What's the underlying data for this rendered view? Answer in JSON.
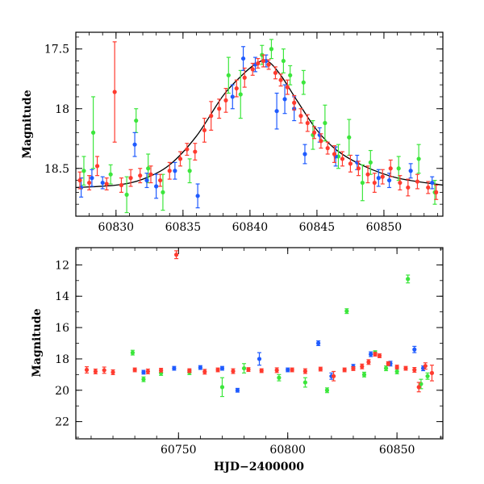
{
  "chart_data": [
    {
      "panel": "top",
      "type": "scatter",
      "ylabel": "Magnitude",
      "xlim": [
        60827,
        60854.4
      ],
      "ylim": [
        18.9,
        17.36
      ],
      "y_inverted": true,
      "xticks": [
        60830,
        60835,
        60840,
        60845,
        60850
      ],
      "yticks": [
        17.5,
        18,
        18.5
      ],
      "ytick_labels": [
        "17.5",
        "18",
        "18.5"
      ],
      "grid": false,
      "model_curve": {
        "name": "",
        "color": "#000000",
        "points": [
          [
            60827,
            18.66
          ],
          [
            60830,
            18.64
          ],
          [
            60832,
            18.59
          ],
          [
            60834,
            18.47
          ],
          [
            60836,
            18.23
          ],
          [
            60838,
            17.89
          ],
          [
            60839.5,
            17.71
          ],
          [
            60840.5,
            17.62
          ],
          [
            60841.3,
            17.6
          ],
          [
            60842.3,
            17.72
          ],
          [
            60843.5,
            17.93
          ],
          [
            60845,
            18.18
          ],
          [
            60846.5,
            18.35
          ],
          [
            60848.5,
            18.48
          ],
          [
            60851,
            18.58
          ],
          [
            60854.4,
            18.64
          ]
        ]
      },
      "series": [
        {
          "color": "#ff3b2f",
          "points": [
            [
              60827.3,
              18.6,
              0.07
            ],
            [
              60828.0,
              18.62,
              0.06
            ],
            [
              60828.6,
              18.48,
              0.08
            ],
            [
              60829.3,
              18.63,
              0.05
            ],
            [
              60829.9,
              17.86,
              0.42
            ],
            [
              60830.4,
              18.64,
              0.06
            ],
            [
              60831.1,
              18.58,
              0.07
            ],
            [
              60831.8,
              18.56,
              0.06
            ],
            [
              60832.6,
              18.55,
              0.07
            ],
            [
              60833.3,
              18.6,
              0.05
            ],
            [
              60834.0,
              18.52,
              0.07
            ],
            [
              60834.8,
              18.42,
              0.06
            ],
            [
              60835.3,
              18.34,
              0.05
            ],
            [
              60835.9,
              18.36,
              0.07
            ],
            [
              60836.6,
              18.18,
              0.1
            ],
            [
              60837.1,
              18.06,
              0.12
            ],
            [
              60837.7,
              18.0,
              0.08
            ],
            [
              60838.2,
              17.93,
              0.1
            ],
            [
              60839.0,
              17.83,
              0.07
            ],
            [
              60839.6,
              17.74,
              0.08
            ],
            [
              60840.2,
              17.67,
              0.05
            ],
            [
              60840.6,
              17.62,
              0.04
            ],
            [
              60841.0,
              17.6,
              0.05
            ],
            [
              60841.4,
              17.63,
              0.04
            ],
            [
              60841.9,
              17.7,
              0.05
            ],
            [
              60842.3,
              17.76,
              0.05
            ],
            [
              60842.8,
              17.82,
              0.06
            ],
            [
              60843.3,
              17.95,
              0.06
            ],
            [
              60843.8,
              18.06,
              0.06
            ],
            [
              60844.3,
              18.12,
              0.07
            ],
            [
              60844.8,
              18.2,
              0.05
            ],
            [
              60845.3,
              18.27,
              0.06
            ],
            [
              60845.8,
              18.33,
              0.05
            ],
            [
              60846.3,
              18.38,
              0.07
            ],
            [
              60846.9,
              18.42,
              0.06
            ],
            [
              60847.5,
              18.46,
              0.07
            ],
            [
              60848.1,
              18.5,
              0.06
            ],
            [
              60848.8,
              18.55,
              0.07
            ],
            [
              60849.3,
              18.62,
              0.08
            ],
            [
              60849.9,
              18.57,
              0.06
            ],
            [
              60850.5,
              18.5,
              0.07
            ],
            [
              60851.2,
              18.62,
              0.06
            ],
            [
              60851.8,
              18.66,
              0.07
            ],
            [
              60852.5,
              18.61,
              0.06
            ],
            [
              60853.3,
              18.66,
              0.05
            ],
            [
              60853.9,
              18.7,
              0.06
            ]
          ]
        },
        {
          "color": "#1f5bff",
          "points": [
            [
              60827.4,
              18.66,
              0.08
            ],
            [
              60828.2,
              18.58,
              0.07
            ],
            [
              60829.0,
              18.62,
              0.05
            ],
            [
              60831.4,
              18.3,
              0.1
            ],
            [
              60832.3,
              18.6,
              0.06
            ],
            [
              60833.0,
              18.65,
              0.1
            ],
            [
              60834.4,
              18.52,
              0.07
            ],
            [
              60836.1,
              18.73,
              0.1
            ],
            [
              60838.7,
              17.9,
              0.1
            ],
            [
              60839.5,
              17.58,
              0.1
            ],
            [
              60840.4,
              17.63,
              0.06
            ],
            [
              60841.2,
              17.6,
              0.05
            ],
            [
              60842.0,
              18.02,
              0.15
            ],
            [
              60842.6,
              17.92,
              0.12
            ],
            [
              60843.3,
              18.0,
              0.1
            ],
            [
              60844.1,
              18.38,
              0.08
            ],
            [
              60845.2,
              18.22,
              0.06
            ],
            [
              60846.4,
              18.4,
              0.08
            ],
            [
              60848.0,
              18.45,
              0.06
            ],
            [
              60849.6,
              18.58,
              0.07
            ],
            [
              60850.4,
              18.6,
              0.06
            ],
            [
              60852.0,
              18.52,
              0.06
            ],
            [
              60853.6,
              18.62,
              0.05
            ]
          ]
        },
        {
          "color": "#3ce63c",
          "points": [
            [
              60827.6,
              18.52,
              0.12
            ],
            [
              60828.3,
              18.2,
              0.3
            ],
            [
              60829.6,
              18.55,
              0.08
            ],
            [
              60830.8,
              18.72,
              0.15
            ],
            [
              60831.5,
              18.1,
              0.1
            ],
            [
              60832.4,
              18.5,
              0.12
            ],
            [
              60833.5,
              18.7,
              0.15
            ],
            [
              60835.5,
              18.52,
              0.1
            ],
            [
              60838.4,
              17.72,
              0.15
            ],
            [
              60839.3,
              17.88,
              0.2
            ],
            [
              60840.9,
              17.55,
              0.08
            ],
            [
              60841.6,
              17.5,
              0.08
            ],
            [
              60842.5,
              17.6,
              0.1
            ],
            [
              60843.0,
              17.72,
              0.08
            ],
            [
              60844.0,
              17.78,
              0.1
            ],
            [
              60844.7,
              18.22,
              0.12
            ],
            [
              60845.6,
              18.12,
              0.15
            ],
            [
              60846.6,
              18.4,
              0.1
            ],
            [
              60847.4,
              18.24,
              0.15
            ],
            [
              60848.4,
              18.62,
              0.15
            ],
            [
              60849.0,
              18.45,
              0.1
            ],
            [
              60851.1,
              18.5,
              0.1
            ],
            [
              60852.6,
              18.42,
              0.12
            ],
            [
              60853.8,
              18.7,
              0.1
            ]
          ]
        }
      ]
    },
    {
      "panel": "bottom",
      "type": "scatter",
      "xlabel": "HJD−2400000",
      "ylabel": "Magnitude",
      "xlim": [
        60703,
        60871
      ],
      "ylim": [
        23.1,
        10.9
      ],
      "y_inverted": true,
      "xticks": [
        60750,
        60800,
        60850
      ],
      "yticks": [
        12,
        14,
        16,
        18,
        20,
        22
      ],
      "grid": false,
      "series": [
        {
          "color": "#ff3b2f",
          "points": [
            [
              60708,
              18.7,
              0.2
            ],
            [
              60712,
              18.8,
              0.15
            ],
            [
              60716,
              18.72,
              0.2
            ],
            [
              60720,
              18.85,
              0.15
            ],
            [
              60730,
              18.7,
              0.12
            ],
            [
              60736,
              18.8,
              0.15
            ],
            [
              60742,
              18.72,
              0.12
            ],
            [
              60749,
              11.35,
              0.25
            ],
            [
              60755,
              18.75,
              0.12
            ],
            [
              60762,
              18.82,
              0.15
            ],
            [
              60768,
              18.7,
              0.12
            ],
            [
              60775,
              18.78,
              0.15
            ],
            [
              60782,
              18.68,
              0.12
            ],
            [
              60788,
              18.75,
              0.12
            ],
            [
              60795,
              18.72,
              0.15
            ],
            [
              60802,
              18.7,
              0.12
            ],
            [
              60808,
              18.78,
              0.15
            ],
            [
              60815,
              18.65,
              0.12
            ],
            [
              60821,
              19.1,
              0.3
            ],
            [
              60826,
              18.7,
              0.12
            ],
            [
              60830,
              18.62,
              0.12
            ],
            [
              60834,
              18.48,
              0.15
            ],
            [
              60837,
              18.2,
              0.15
            ],
            [
              60840,
              17.7,
              0.12
            ],
            [
              60842,
              17.8,
              0.12
            ],
            [
              60846,
              18.3,
              0.12
            ],
            [
              60850,
              18.52,
              0.12
            ],
            [
              60854,
              18.6,
              0.12
            ],
            [
              60858,
              18.7,
              0.15
            ],
            [
              60860,
              19.8,
              0.3
            ],
            [
              60863,
              18.45,
              0.2
            ],
            [
              60866,
              18.9,
              0.5
            ]
          ]
        },
        {
          "color": "#1f5bff",
          "points": [
            [
              60734,
              18.85,
              0.12
            ],
            [
              60748,
              18.6,
              0.12
            ],
            [
              60760,
              18.55,
              0.12
            ],
            [
              60770,
              18.6,
              0.12
            ],
            [
              60777,
              20.0,
              0.12
            ],
            [
              60787,
              18.0,
              0.4
            ],
            [
              60800,
              18.7,
              0.12
            ],
            [
              60814,
              17.0,
              0.15
            ],
            [
              60820,
              19.1,
              0.2
            ],
            [
              60830,
              18.5,
              0.15
            ],
            [
              60838,
              17.7,
              0.15
            ],
            [
              60847,
              18.3,
              0.15
            ],
            [
              60858,
              17.4,
              0.2
            ],
            [
              60862,
              18.6,
              0.15
            ]
          ]
        },
        {
          "color": "#3ce63c",
          "points": [
            [
              60729,
              17.6,
              0.15
            ],
            [
              60734,
              19.3,
              0.15
            ],
            [
              60742,
              18.9,
              0.15
            ],
            [
              60755,
              18.85,
              0.15
            ],
            [
              60770,
              19.8,
              0.6
            ],
            [
              60780,
              18.6,
              0.3
            ],
            [
              60796,
              19.2,
              0.2
            ],
            [
              60808,
              19.5,
              0.3
            ],
            [
              60818,
              20.0,
              0.15
            ],
            [
              60827,
              14.95,
              0.15
            ],
            [
              60835,
              19.0,
              0.15
            ],
            [
              60840,
              17.6,
              0.12
            ],
            [
              60845,
              18.6,
              0.15
            ],
            [
              60850,
              18.8,
              0.15
            ],
            [
              60855,
              12.9,
              0.25
            ],
            [
              60861,
              19.6,
              0.3
            ],
            [
              60864,
              19.1,
              0.2
            ]
          ]
        }
      ]
    }
  ]
}
